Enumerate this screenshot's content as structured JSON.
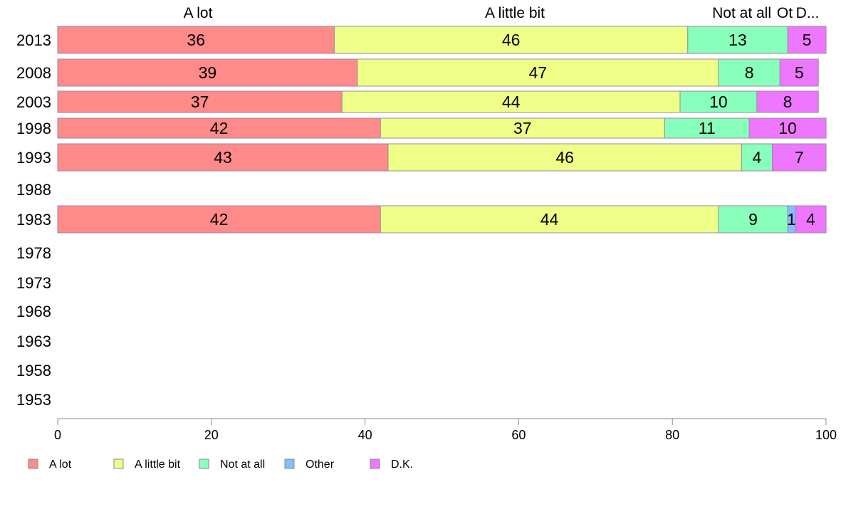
{
  "chart_data": {
    "type": "bar",
    "orientation": "horizontal",
    "stacked": true,
    "title": "",
    "xlabel": "",
    "ylabel": "",
    "xlim": [
      0,
      100
    ],
    "x_ticks": [
      0,
      20,
      40,
      60,
      80,
      100
    ],
    "grid": false,
    "legend_position": "bottom-left",
    "column_headers": [
      "A lot",
      "A little bit",
      "Not at all",
      "Ot",
      "D..."
    ],
    "categories": [
      "2013",
      "2008",
      "2003",
      "1998",
      "1993",
      "1988",
      "1983",
      "1978",
      "1973",
      "1968",
      "1963",
      "1958",
      "1953"
    ],
    "series": [
      {
        "name": "A lot",
        "color": "#ff8a8a",
        "values": [
          36,
          39,
          37,
          42,
          43,
          null,
          42,
          null,
          null,
          null,
          null,
          null,
          null
        ]
      },
      {
        "name": "A little bit",
        "color": "#eeff88",
        "values": [
          46,
          47,
          44,
          37,
          46,
          null,
          44,
          null,
          null,
          null,
          null,
          null,
          null
        ]
      },
      {
        "name": "Not at all",
        "color": "#88ffbb",
        "values": [
          13,
          8,
          10,
          11,
          4,
          null,
          9,
          null,
          null,
          null,
          null,
          null,
          null
        ]
      },
      {
        "name": "Other",
        "color": "#88bbff",
        "values": [
          0,
          0,
          0,
          0,
          0,
          null,
          1,
          null,
          null,
          null,
          null,
          null,
          null
        ]
      },
      {
        "name": "D.K.",
        "color": "#ee77ff",
        "values": [
          5,
          5,
          8,
          10,
          7,
          null,
          4,
          null,
          null,
          null,
          null,
          null,
          null
        ]
      }
    ],
    "data_labels": [
      [
        "36",
        "46",
        "13",
        "",
        "5"
      ],
      [
        "39",
        "47",
        "8",
        "",
        "5"
      ],
      [
        "37",
        "44",
        "10",
        "",
        "8"
      ],
      [
        "42",
        "37",
        "11",
        "",
        "10"
      ],
      [
        "43",
        "46",
        "4",
        "",
        "7"
      ],
      [
        "",
        "",
        "",
        "",
        ""
      ],
      [
        "42",
        "44",
        "9",
        "1",
        "4"
      ],
      [
        "",
        "",
        "",
        "",
        ""
      ],
      [
        "",
        "",
        "",
        "",
        ""
      ],
      [
        "",
        "",
        "",
        "",
        ""
      ],
      [
        "",
        "",
        "",
        "",
        ""
      ],
      [
        "",
        "",
        "",
        "",
        ""
      ],
      [
        "",
        "",
        "",
        "",
        ""
      ]
    ]
  }
}
